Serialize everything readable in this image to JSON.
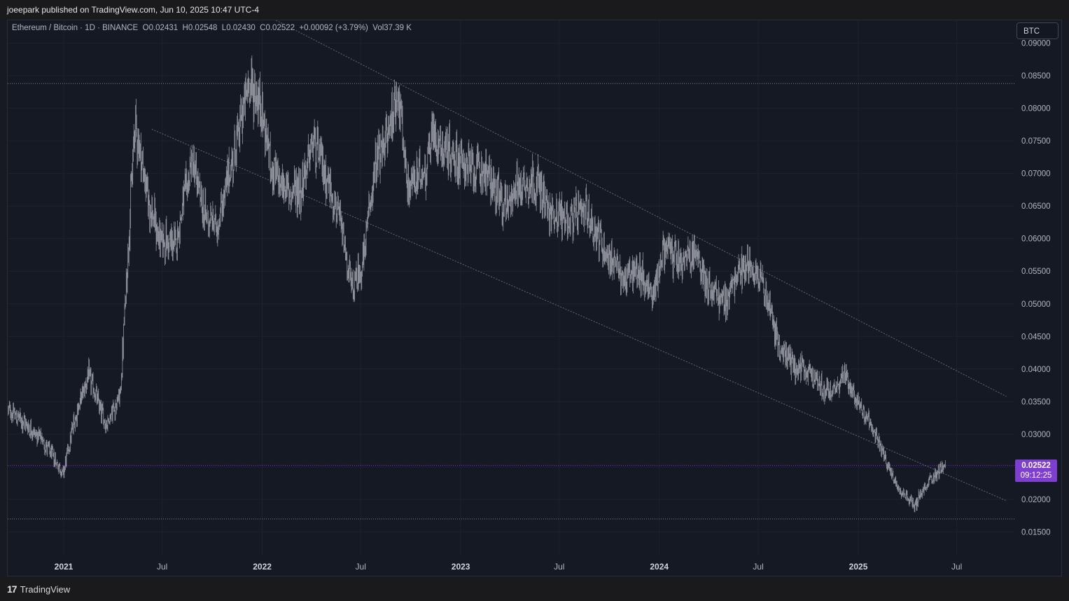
{
  "header": {
    "published_text": "joeepark published on TradingView.com, Jun 10, 2025 10:47 UTC-4"
  },
  "legend": {
    "symbol": "Ethereum / Bitcoin · 1D · BINANCE",
    "open": "O0.02431",
    "high": "H0.02548",
    "low": "L0.02430",
    "close": "C0.02522",
    "change": "+0.00092 (+3.79%)",
    "volume": "Vol37.39 K"
  },
  "currency_button": "BTC",
  "last_price": {
    "price": "0.02522",
    "countdown": "09:12:25",
    "color": "#7e3fd0"
  },
  "footer": {
    "brand": "TradingView",
    "logo_icon": "tradingview-logo-icon"
  },
  "colors": {
    "candle": "#9598a1",
    "trendline": "#787b86",
    "level_line": "#9598a1",
    "price_line": "#7e3fd0",
    "background": "#151924"
  },
  "chart_data": {
    "type": "candlestick",
    "title": "Ethereum / Bitcoin · 1D · BINANCE",
    "x_axis": {
      "type": "time",
      "ticks": [
        "2021",
        "Jul",
        "2022",
        "Jul",
        "2023",
        "Jul",
        "2024",
        "Jul",
        "2025",
        "Jul"
      ],
      "bold_ticks": [
        "2021",
        "2022",
        "2023",
        "2024",
        "2025"
      ],
      "range": [
        "2020-09-20",
        "2025-10-15"
      ]
    },
    "y_axis": {
      "position": "right",
      "ticks": [
        "0.09000",
        "0.08500",
        "0.08000",
        "0.07500",
        "0.07000",
        "0.06500",
        "0.06000",
        "0.05500",
        "0.05000",
        "0.04500",
        "0.04000",
        "0.03500",
        "0.03000",
        "0.02500",
        "0.02000",
        "0.01500"
      ],
      "range": [
        0.0115,
        0.0935
      ]
    },
    "series": [
      {
        "name": "ETHBTC",
        "approx_close_path": [
          [
            "2020-09-21",
            0.0337
          ],
          [
            "2020-10-20",
            0.0318
          ],
          [
            "2020-11-25",
            0.0288
          ],
          [
            "2020-12-31",
            0.024
          ],
          [
            "2021-01-20",
            0.032
          ],
          [
            "2021-02-15",
            0.039
          ],
          [
            "2021-03-20",
            0.0315
          ],
          [
            "2021-04-15",
            0.036
          ],
          [
            "2021-05-12",
            0.078
          ],
          [
            "2021-06-05",
            0.066
          ],
          [
            "2021-06-25",
            0.06
          ],
          [
            "2021-07-25",
            0.059
          ],
          [
            "2021-08-25",
            0.072
          ],
          [
            "2021-09-15",
            0.064
          ],
          [
            "2021-10-10",
            0.062
          ],
          [
            "2021-11-10",
            0.073
          ],
          [
            "2021-12-08",
            0.084
          ],
          [
            "2021-12-30",
            0.08
          ],
          [
            "2022-01-20",
            0.07
          ],
          [
            "2022-02-20",
            0.067
          ],
          [
            "2022-03-15",
            0.068
          ],
          [
            "2022-04-05",
            0.075
          ],
          [
            "2022-05-01",
            0.069
          ],
          [
            "2022-05-25",
            0.062
          ],
          [
            "2022-06-15",
            0.052
          ],
          [
            "2022-07-05",
            0.056
          ],
          [
            "2022-07-25",
            0.07
          ],
          [
            "2022-08-20",
            0.076
          ],
          [
            "2022-09-07",
            0.083
          ],
          [
            "2022-09-25",
            0.068
          ],
          [
            "2022-10-25",
            0.07
          ],
          [
            "2022-11-10",
            0.076
          ],
          [
            "2022-12-10",
            0.073
          ],
          [
            "2023-01-15",
            0.071
          ],
          [
            "2023-02-20",
            0.07
          ],
          [
            "2023-03-20",
            0.065
          ],
          [
            "2023-04-15",
            0.068
          ],
          [
            "2023-05-20",
            0.069
          ],
          [
            "2023-06-12",
            0.064
          ],
          [
            "2023-07-20",
            0.063
          ],
          [
            "2023-08-20",
            0.064
          ],
          [
            "2023-09-25",
            0.058
          ],
          [
            "2023-10-25",
            0.054
          ],
          [
            "2023-11-25",
            0.055
          ],
          [
            "2023-12-20",
            0.051
          ],
          [
            "2024-01-10",
            0.059
          ],
          [
            "2024-02-10",
            0.056
          ],
          [
            "2024-03-05",
            0.058
          ],
          [
            "2024-03-30",
            0.053
          ],
          [
            "2024-04-30",
            0.05
          ],
          [
            "2024-05-20",
            0.054
          ],
          [
            "2024-06-10",
            0.056
          ],
          [
            "2024-07-05",
            0.055
          ],
          [
            "2024-07-25",
            0.048
          ],
          [
            "2024-08-10",
            0.043
          ],
          [
            "2024-09-10",
            0.04
          ],
          [
            "2024-10-10",
            0.039
          ],
          [
            "2024-11-10",
            0.036
          ],
          [
            "2024-12-05",
            0.039
          ],
          [
            "2024-12-25",
            0.036
          ],
          [
            "2025-01-20",
            0.032
          ],
          [
            "2025-02-15",
            0.027
          ],
          [
            "2025-03-15",
            0.022
          ],
          [
            "2025-04-15",
            0.019
          ],
          [
            "2025-05-10",
            0.023
          ],
          [
            "2025-06-10",
            0.0252
          ]
        ]
      }
    ],
    "trendlines": [
      {
        "name": "upper-channel-line",
        "from": [
          "2022-01-08",
          0.0943
        ],
        "to": [
          "2025-09-30",
          0.0358
        ]
      },
      {
        "name": "lower-channel-line",
        "from": [
          "2021-06-12",
          0.0768
        ],
        "to": [
          "2025-09-30",
          0.0198
        ]
      }
    ],
    "horizontal_levels": [
      {
        "name": "resistance-level",
        "value": 0.0838
      },
      {
        "name": "last-price-level",
        "value": 0.02522
      },
      {
        "name": "support-level",
        "value": 0.017
      }
    ],
    "grid": true,
    "legend_position": "top-left"
  }
}
